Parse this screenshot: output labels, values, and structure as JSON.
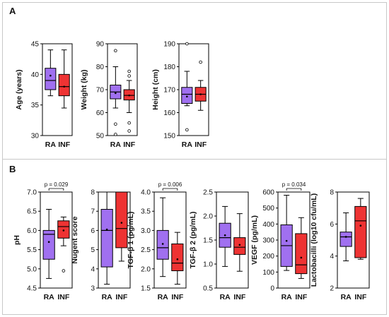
{
  "panels": [
    {
      "label": "A"
    },
    {
      "label": "B"
    }
  ],
  "colors": {
    "RA": "#a070f0",
    "INF": "#ee3333",
    "line": "#000000"
  },
  "chart_data": [
    {
      "type": "box",
      "panel": "A",
      "ylabel": "Age (years)",
      "ylim": [
        30,
        45
      ],
      "yticks": [
        30,
        35,
        40,
        45
      ],
      "categories": [
        "RA",
        "INF"
      ],
      "groups": [
        {
          "name": "RA",
          "whisker": [
            36.5,
            44
          ],
          "q1": 37.5,
          "median": 39,
          "q3": 41,
          "mean": 39.8,
          "outliers": []
        },
        {
          "name": "INF",
          "whisker": [
            34.5,
            44
          ],
          "q1": 36.5,
          "median": 38,
          "q3": 40,
          "mean": 38,
          "outliers": []
        }
      ]
    },
    {
      "type": "box",
      "panel": "A",
      "ylabel": "Weight (kg)",
      "ylim": [
        50,
        90
      ],
      "yticks": [
        50,
        60,
        70,
        80,
        90
      ],
      "categories": [
        "RA",
        "INF"
      ],
      "groups": [
        {
          "name": "RA",
          "whisker": [
            62,
            80
          ],
          "q1": 66,
          "median": 69,
          "q3": 72,
          "mean": 68.5,
          "outliers": [
            87,
            55,
            50.5
          ]
        },
        {
          "name": "INF",
          "whisker": [
            60,
            74
          ],
          "q1": 65.5,
          "median": 67.5,
          "q3": 70,
          "mean": 67.5,
          "outliers": [
            78,
            76,
            55.5,
            52
          ]
        }
      ]
    },
    {
      "type": "box",
      "panel": "A",
      "ylabel": "Height (cm)",
      "ylim": [
        150,
        190
      ],
      "yticks": [
        150,
        160,
        170,
        180,
        190
      ],
      "categories": [
        "RA",
        "INF"
      ],
      "groups": [
        {
          "name": "RA",
          "whisker": [
            163,
            178
          ],
          "q1": 164,
          "median": 168,
          "q3": 171,
          "mean": 167,
          "outliers": [
            190,
            152.5
          ]
        },
        {
          "name": "INF",
          "whisker": [
            161,
            174
          ],
          "q1": 165,
          "median": 168,
          "q3": 171,
          "mean": 168,
          "outliers": [
            182
          ]
        }
      ]
    },
    {
      "type": "box",
      "panel": "B",
      "ylabel": "pH",
      "ylim": [
        4.5,
        7.0
      ],
      "yticks": [
        "4.5",
        "5.0",
        "5.5",
        "6.0",
        "6.5",
        "7.0"
      ],
      "categories": [
        "RA",
        "INF"
      ],
      "annotation": "p = 0.029",
      "groups": [
        {
          "name": "RA",
          "whisker": [
            4.75,
            6.55
          ],
          "q1": 5.25,
          "median": 5.9,
          "q3": 6.0,
          "mean": 5.7,
          "outliers": []
        },
        {
          "name": "INF",
          "whisker": [
            5.6,
            6.35
          ],
          "q1": 5.8,
          "median": 6.1,
          "q3": 6.25,
          "mean": 6.0,
          "outliers": [
            4.95
          ]
        }
      ]
    },
    {
      "type": "box",
      "panel": "B",
      "ylabel": "Nugent score",
      "ylim": [
        3,
        8
      ],
      "yticks": [
        3,
        4,
        5,
        6,
        7,
        8
      ],
      "categories": [
        "RA",
        "INF"
      ],
      "groups": [
        {
          "name": "RA",
          "whisker": [
            3.2,
            8.0
          ],
          "q1": 4.1,
          "median": 6.0,
          "q3": 7.1,
          "mean": 6.05,
          "outliers": []
        },
        {
          "name": "INF",
          "whisker": [
            4.4,
            8.0
          ],
          "q1": 5.1,
          "median": 6.1,
          "q3": 8.0,
          "mean": 6.4,
          "outliers": []
        }
      ]
    },
    {
      "type": "box",
      "panel": "B",
      "ylabel": "TGF-β 1 (pg/mL)",
      "ylim": [
        1.5,
        4.0
      ],
      "yticks": [
        "1.5",
        "2.0",
        "2.5",
        "3.0",
        "3.5",
        "4.0"
      ],
      "categories": [
        "RA",
        "INF"
      ],
      "annotation": "p = 0.006",
      "groups": [
        {
          "name": "RA",
          "whisker": [
            1.8,
            3.85
          ],
          "q1": 2.25,
          "median": 2.55,
          "q3": 3.0,
          "mean": 2.65,
          "outliers": []
        },
        {
          "name": "INF",
          "whisker": [
            1.6,
            2.95
          ],
          "q1": 1.95,
          "median": 2.15,
          "q3": 2.65,
          "mean": 2.25,
          "outliers": []
        }
      ]
    },
    {
      "type": "box",
      "panel": "B",
      "ylabel": "TGF-β 2 (pg/mL)",
      "ylim": [
        0.5,
        2.5
      ],
      "yticks": [
        "0.5",
        "1.0",
        "1.5",
        "2.0",
        "2.5"
      ],
      "categories": [
        "RA",
        "INF"
      ],
      "groups": [
        {
          "name": "RA",
          "whisker": [
            0.95,
            2.2
          ],
          "q1": 1.35,
          "median": 1.55,
          "q3": 1.85,
          "mean": 1.6,
          "outliers": []
        },
        {
          "name": "INF",
          "whisker": [
            0.85,
            2.05
          ],
          "q1": 1.2,
          "median": 1.35,
          "q3": 1.55,
          "mean": 1.4,
          "outliers": []
        }
      ]
    },
    {
      "type": "box",
      "panel": "B",
      "ylabel": "VEGF (pg/mL)",
      "ylim": [
        0,
        600
      ],
      "yticks": [
        0,
        100,
        200,
        300,
        400,
        500,
        600
      ],
      "categories": [
        "RA",
        "INF"
      ],
      "annotation": "p = 0.034",
      "groups": [
        {
          "name": "RA",
          "whisker": [
            110,
            580
          ],
          "q1": 135,
          "median": 265,
          "q3": 395,
          "mean": 295,
          "outliers": []
        },
        {
          "name": "INF",
          "whisker": [
            60,
            440
          ],
          "q1": 90,
          "median": 145,
          "q3": 340,
          "mean": 190,
          "outliers": []
        }
      ]
    },
    {
      "type": "box",
      "panel": "B",
      "ylabel": "Lactobacilli (log10 cfu/mL)",
      "ylim": [
        2,
        8
      ],
      "yticks": [
        2,
        4,
        6,
        8
      ],
      "categories": [
        "RA",
        "INF"
      ],
      "groups": [
        {
          "name": "RA",
          "whisker": [
            3.7,
            6.7
          ],
          "q1": 4.6,
          "median": 5.2,
          "q3": 5.5,
          "mean": 5.2,
          "outliers": []
        },
        {
          "name": "INF",
          "whisker": [
            3.8,
            7.6
          ],
          "q1": 3.9,
          "median": 6.2,
          "q3": 7.1,
          "mean": 5.9,
          "outliers": []
        }
      ]
    }
  ]
}
